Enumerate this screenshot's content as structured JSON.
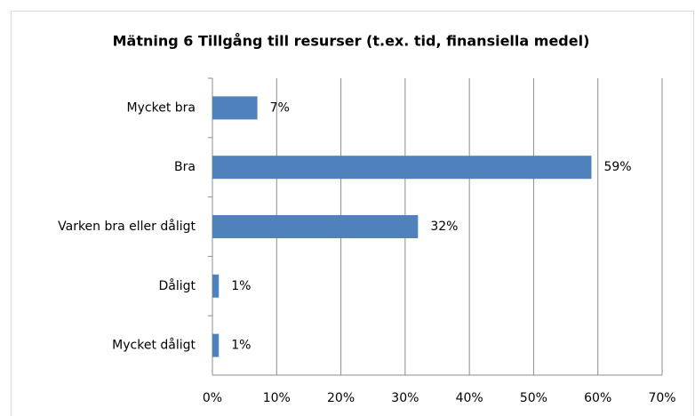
{
  "chart_data": {
    "type": "bar",
    "orientation": "horizontal",
    "title": "Mätning 6 Tillgång till resurser (t.ex. tid, finansiella medel)",
    "categories": [
      "Mycket bra",
      "Bra",
      "Varken bra eller dåligt",
      "Dåligt",
      "Mycket dåligt"
    ],
    "values": [
      7,
      59,
      32,
      1,
      1
    ],
    "value_labels": [
      "7%",
      "59%",
      "32%",
      "1%",
      "1%"
    ],
    "color": "#4f81bd",
    "xlim": [
      0,
      70
    ],
    "xticks": [
      {
        "value": 0,
        "label": "0%"
      },
      {
        "value": 10,
        "label": "10%"
      },
      {
        "value": 20,
        "label": "20%"
      },
      {
        "value": 30,
        "label": "30%"
      },
      {
        "value": 40,
        "label": "40%"
      },
      {
        "value": 50,
        "label": "50%"
      },
      {
        "value": 60,
        "label": "60%"
      },
      {
        "value": 70,
        "label": "70%"
      }
    ],
    "grid": true
  }
}
